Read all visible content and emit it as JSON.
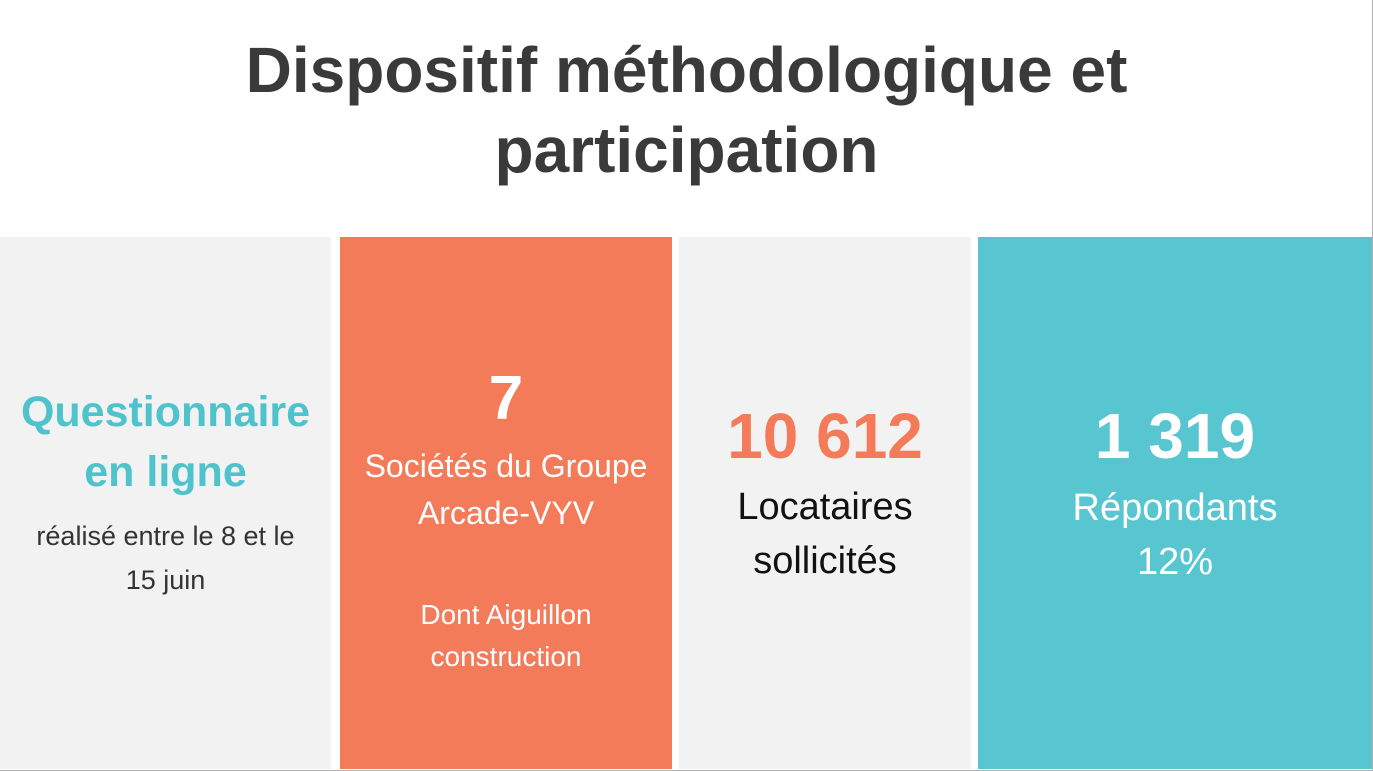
{
  "title": {
    "line1": "Dispositif méthodologique et",
    "line2": "participation"
  },
  "cards": [
    {
      "heading_line1": "Questionnaire",
      "heading_line2": "en ligne",
      "sub_line1": "réalisé entre le 8 et le",
      "sub_line2": "15 juin"
    },
    {
      "number": "7",
      "text_line1": "Sociétés du Groupe",
      "text_line2": "Arcade-VYV",
      "note_line1": "Dont Aiguillon",
      "note_line2": "construction"
    },
    {
      "number": "10 612",
      "text_line1": "Locataires",
      "text_line2": "sollicités"
    },
    {
      "number": "1 319",
      "text_line1": "Répondants",
      "text_line2": "12%"
    }
  ],
  "colors": {
    "title": "#3a3a3a",
    "card_grey": "#f2f2f2",
    "card_orange": "#f47b5a",
    "card_teal": "#58c6d0",
    "teal_text": "#4fc3cc",
    "orange_text": "#f47b5a"
  }
}
